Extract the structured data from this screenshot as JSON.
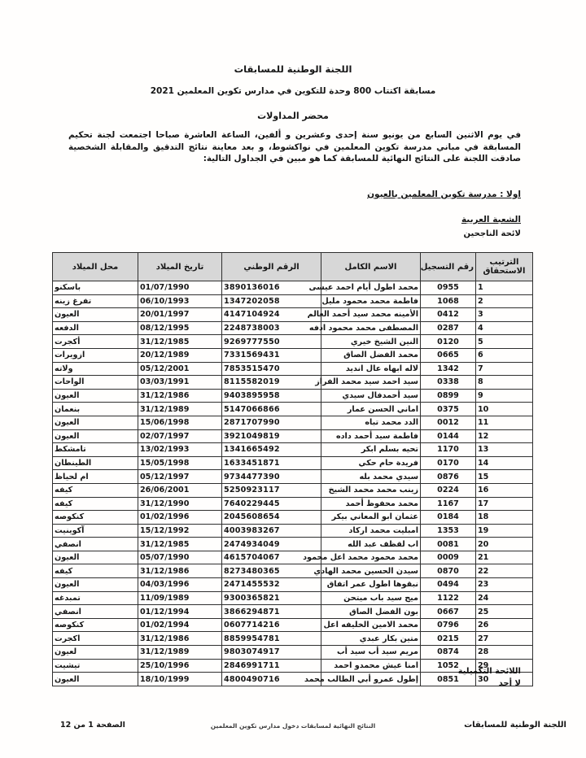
{
  "header": {
    "committee": "اللجنة الوطنية للمسابقات",
    "competition": "مسابقة اكتتاب 800 وحدة  للتكوين في مدارس تكوين المعلمين 2021",
    "doc_title": "محضر المداولات",
    "paragraph": "في يوم الاثنين السابع من يونيو سنة إحدى وعشرين و ألفين، الساعة العاشرة صباحا اجتمعت لجنة تحكيم المسابقة في مباني مدرسة تكوين المعلمين في نواكشوط، و بعد معاينة نتائج التدقيق والمقابلة الشخصية صادقت اللجنة على النتائج النهائية للمسابقة كما هو مبين في الجداول التالية:"
  },
  "sections": {
    "school": "اولا :  مدرسة تكوين المعلمين بالعيون",
    "branch": "الشعبة العربية",
    "list": "لائحة الناجحين"
  },
  "table": {
    "headers": {
      "rank_line1": "الترتيب",
      "rank_line2": "الاستحقاق",
      "reg": "رقم التسجيل",
      "name": "الاسم الكامل",
      "natid": "الرقم الوطني",
      "dob": "تاريخ الميلاد",
      "pob": "محل الميلاد"
    },
    "column_order": [
      "rank",
      "reg",
      "name",
      "natid",
      "dob",
      "pob"
    ],
    "rows": [
      {
        "rank": "1",
        "reg": "0955",
        "name": "محمد اطول أيام احمد عيسى",
        "natid": "3890136016",
        "dob": "01/07/1990",
        "pob": "باسكنو"
      },
      {
        "rank": "2",
        "reg": "1068",
        "name": "فاطمة محمد محمود مليل",
        "natid": "1347202058",
        "dob": "06/10/1993",
        "pob": "تفرغ زينه"
      },
      {
        "rank": "3",
        "reg": "0412",
        "name": "الأمينه محمد سيد أحمد العالم",
        "natid": "4147104924",
        "dob": "20/01/1997",
        "pob": "العيون"
      },
      {
        "rank": "4",
        "reg": "0287",
        "name": "المصطفى محمد محمود ادفه",
        "natid": "2248738003",
        "dob": "08/12/1995",
        "pob": "الدفعه"
      },
      {
        "rank": "5",
        "reg": "0120",
        "name": "النين الشيخ خيري",
        "natid": "9269777550",
        "dob": "31/12/1985",
        "pob": "أكجرت"
      },
      {
        "rank": "6",
        "reg": "0665",
        "name": "محمد الفضل الصاق",
        "natid": "7331569431",
        "dob": "20/12/1989",
        "pob": "ازويرات"
      },
      {
        "rank": "7",
        "reg": "1342",
        "name": "لاله ابهاه عال انديد",
        "natid": "7853515470",
        "dob": "05/12/2001",
        "pob": "ولاته"
      },
      {
        "rank": "8",
        "reg": "0338",
        "name": "سيد احمد سيد محمد الفراز",
        "natid": "8115582019",
        "dob": "03/03/1991",
        "pob": "الواحات"
      },
      {
        "rank": "9",
        "reg": "0899",
        "name": "سيد أحمدفال سيدي",
        "natid": "9403895958",
        "dob": "31/12/1986",
        "pob": "العيون"
      },
      {
        "rank": "10",
        "reg": "0375",
        "name": "اماني الحسن عمار",
        "natid": "5147066866",
        "dob": "31/12/1989",
        "pob": "بنعمان"
      },
      {
        "rank": "11",
        "reg": "0012",
        "name": "الدد محمد تباه",
        "natid": "2871707990",
        "dob": "15/06/1998",
        "pob": "العيون"
      },
      {
        "rank": "12",
        "reg": "0144",
        "name": "فاطمة سيد أحمد داده",
        "natid": "3921049819",
        "dob": "02/07/1997",
        "pob": "العيون"
      },
      {
        "rank": "13",
        "reg": "1170",
        "name": "تحيه بسلم ابكر",
        "natid": "1341665492",
        "dob": "13/02/1993",
        "pob": "تامشكط"
      },
      {
        "rank": "14",
        "reg": "0170",
        "name": "فريدة حام حكي",
        "natid": "1633451871",
        "dob": "15/05/1998",
        "pob": "الطينطان"
      },
      {
        "rank": "15",
        "reg": "0876",
        "name": "سيدي محمد بله",
        "natid": "9734477390",
        "dob": "05/12/1997",
        "pob": "ام لحياظ"
      },
      {
        "rank": "16",
        "reg": "0224",
        "name": "زينب محمد محمد الشيخ",
        "natid": "5250923117",
        "dob": "26/06/2001",
        "pob": "كيفه"
      },
      {
        "rank": "17",
        "reg": "1167",
        "name": "محمد محفوظ أحمد",
        "natid": "7640229445",
        "dob": "31/12/1990",
        "pob": "كيفه"
      },
      {
        "rank": "18",
        "reg": "0184",
        "name": "عثمان ابو المعاني بيكر",
        "natid": "2045608654",
        "dob": "01/02/1996",
        "pob": "كنكوصه"
      },
      {
        "rank": "19",
        "reg": "1353",
        "name": "امبليت محمد اركاد",
        "natid": "4003983267",
        "dob": "15/12/1992",
        "pob": "آكوينيت"
      },
      {
        "rank": "20",
        "reg": "0081",
        "name": "اب لقظف عبد الله",
        "natid": "2474934049",
        "dob": "31/12/1985",
        "pob": "انصفي"
      },
      {
        "rank": "21",
        "reg": "0009",
        "name": "محمد محمود محمد اعل محمود",
        "natid": "4615704067",
        "dob": "05/07/1990",
        "pob": "العيون"
      },
      {
        "rank": "22",
        "reg": "0870",
        "name": "سيدن الحسين محمد الهادي",
        "natid": "8273480365",
        "dob": "31/12/1986",
        "pob": "كيفه"
      },
      {
        "rank": "23",
        "reg": "0494",
        "name": "نبقوها اطول عمر اتفاق",
        "natid": "2471455532",
        "dob": "04/03/1996",
        "pob": "العيون"
      },
      {
        "rank": "24",
        "reg": "1122",
        "name": "ميج سيد باب ميتحن",
        "natid": "9300365821",
        "dob": "11/09/1989",
        "pob": "تمبدغه"
      },
      {
        "rank": "25",
        "reg": "0667",
        "name": "بون الفضل الصاق",
        "natid": "3866294871",
        "dob": "01/12/1994",
        "pob": "انصفي"
      },
      {
        "rank": "26",
        "reg": "0796",
        "name": "محمد الامين الخليفه اعل",
        "natid": "0607714216",
        "dob": "01/02/1994",
        "pob": "كنكوصه"
      },
      {
        "rank": "27",
        "reg": "0215",
        "name": "متين بكار عبدي",
        "natid": "8859954781",
        "dob": "31/12/1986",
        "pob": "اكجرت"
      },
      {
        "rank": "28",
        "reg": "0874",
        "name": "مريم سيد أب سيد أب",
        "natid": "9803074917",
        "dob": "31/12/1989",
        "pob": "لعيون"
      },
      {
        "rank": "29",
        "reg": "1052",
        "name": "امنا عيش محمدو احمد",
        "natid": "2846991711",
        "dob": "25/10/1996",
        "pob": "تيشيت"
      },
      {
        "rank": "30",
        "reg": "0851",
        "name": "إطول عمرو أبي الطالب محمد",
        "natid": "4800490716",
        "dob": "18/10/1999",
        "pob": "العيون"
      }
    ]
  },
  "supplementary": {
    "title": "اللائحة التكميلية",
    "value": "لا أحد"
  },
  "footer": {
    "left": "الصفحة 1 من 12",
    "center": "النتائج النهائية لمسابقات دخول مدارس تكوين المعلمين",
    "right": "اللجنة الوطنية للمسابقات"
  },
  "colors": {
    "page_background": "#fffefd",
    "table_header_background": "#d7d7d7",
    "table_border": "#2f2f2f",
    "text": "#151515"
  }
}
